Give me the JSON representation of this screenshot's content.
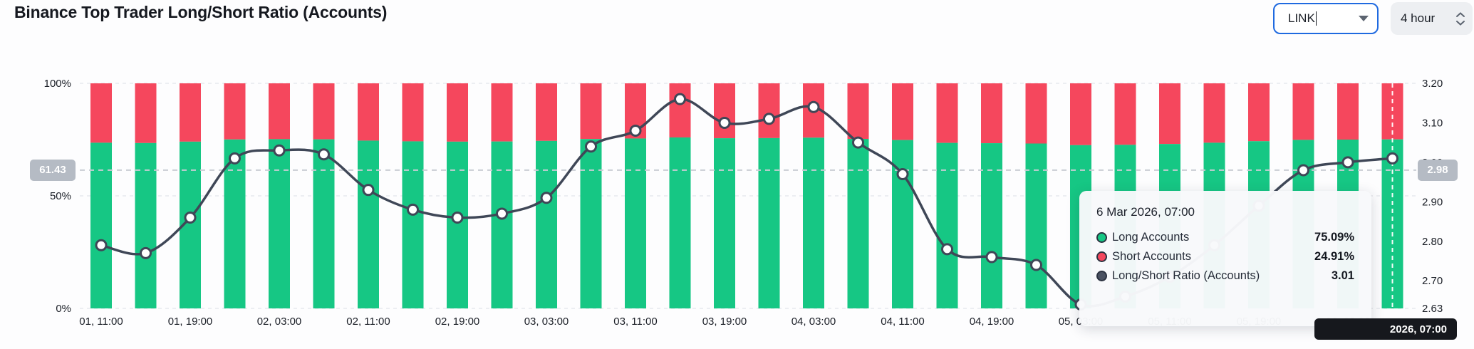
{
  "header": {
    "title": "Binance Top Trader Long/Short Ratio (Accounts)"
  },
  "controls": {
    "symbol_input": {
      "value": "LINK"
    },
    "interval_select": {
      "value": "4 hour"
    }
  },
  "tooltip": {
    "title": "6 Mar 2026, 07:00",
    "rows": [
      {
        "label": "Long Accounts",
        "value": "75.09%",
        "color": "#16c784"
      },
      {
        "label": "Short Accounts",
        "value": "24.91%",
        "color": "#f5475d"
      },
      {
        "label": "Long/Short Ratio (Accounts)",
        "value": "3.01",
        "color": "#4a5161"
      }
    ]
  },
  "crosshair": {
    "left_badge": "61.43",
    "right_badge": "2.98",
    "bottom_badge": "2026, 07:00",
    "percent": 61.43,
    "ratio": 2.98
  },
  "chart_data": {
    "type": "bar",
    "subtype": "stacked-percent-bars-with-ratio-line",
    "title": "Binance Top Trader Long/Short Ratio (Accounts)",
    "categories": [
      "01, 11:00",
      "01, 15:00",
      "01, 19:00",
      "01, 23:00",
      "02, 03:00",
      "02, 07:00",
      "02, 11:00",
      "02, 15:00",
      "02, 19:00",
      "02, 23:00",
      "03, 03:00",
      "03, 07:00",
      "03, 11:00",
      "03, 15:00",
      "03, 19:00",
      "03, 23:00",
      "04, 03:00",
      "04, 07:00",
      "04, 11:00",
      "04, 15:00",
      "04, 19:00",
      "04, 23:00",
      "05, 03:00",
      "05, 07:00",
      "05, 11:00",
      "05, 15:00",
      "05, 19:00",
      "05, 23:00",
      "06, 03:00",
      "06, 07:00"
    ],
    "x_tick_every": 2,
    "series": [
      {
        "name": "Long Accounts",
        "axis": "left",
        "kind": "bar",
        "color": "#16c784",
        "values": [
          73.61,
          73.47,
          74.09,
          75.06,
          75.19,
          75.12,
          74.55,
          74.23,
          74.09,
          74.16,
          74.42,
          75.25,
          75.49,
          75.96,
          75.61,
          75.67,
          75.85,
          75.31,
          74.81,
          73.54,
          73.4,
          73.26,
          72.53,
          72.68,
          73.05,
          73.61,
          74.29,
          74.87,
          75.0,
          75.09
        ]
      },
      {
        "name": "Short Accounts",
        "axis": "left",
        "kind": "bar",
        "color": "#f5475d",
        "values": [
          26.39,
          26.53,
          25.91,
          24.94,
          24.81,
          24.88,
          25.45,
          25.77,
          25.91,
          25.84,
          25.58,
          24.75,
          24.51,
          24.04,
          24.39,
          24.33,
          24.15,
          24.69,
          25.19,
          26.46,
          26.6,
          26.74,
          27.47,
          27.32,
          26.95,
          26.39,
          25.71,
          25.13,
          25.0,
          24.91
        ]
      },
      {
        "name": "Long/Short Ratio (Accounts)",
        "axis": "right",
        "kind": "line",
        "color": "#3f4757",
        "values": [
          2.79,
          2.77,
          2.86,
          3.01,
          3.03,
          3.02,
          2.93,
          2.88,
          2.86,
          2.87,
          2.91,
          3.04,
          3.08,
          3.16,
          3.1,
          3.11,
          3.14,
          3.05,
          2.97,
          2.78,
          2.76,
          2.74,
          2.64,
          2.66,
          2.71,
          2.79,
          2.89,
          2.98,
          3.0,
          3.01
        ]
      }
    ],
    "left_axis": {
      "range": [
        0,
        100
      ],
      "ticks": [
        {
          "v": 100,
          "label": "100%"
        },
        {
          "v": 50,
          "label": "50%"
        },
        {
          "v": 0,
          "label": "0%"
        }
      ]
    },
    "right_axis": {
      "range": [
        2.63,
        3.2
      ],
      "ticks": [
        {
          "v": 3.2,
          "label": "3.20"
        },
        {
          "v": 3.1,
          "label": "3.10"
        },
        {
          "v": 3.0,
          "label": "3.00"
        },
        {
          "v": 2.9,
          "label": "2.90"
        },
        {
          "v": 2.8,
          "label": "2.80"
        },
        {
          "v": 2.7,
          "label": "2.70"
        },
        {
          "v": 2.63,
          "label": "2.63"
        }
      ]
    },
    "grid": "dashed horizontal at left-axis ticks",
    "legend": "none (legend shown inside tooltip)",
    "colors": {
      "long": "#16c784",
      "short": "#f5475d",
      "ratio_line": "#3f4757",
      "crosshair_badge": "#b5bbc4",
      "time_badge_bg": "#16181d",
      "accent_blue": "#1f6ae0"
    }
  }
}
